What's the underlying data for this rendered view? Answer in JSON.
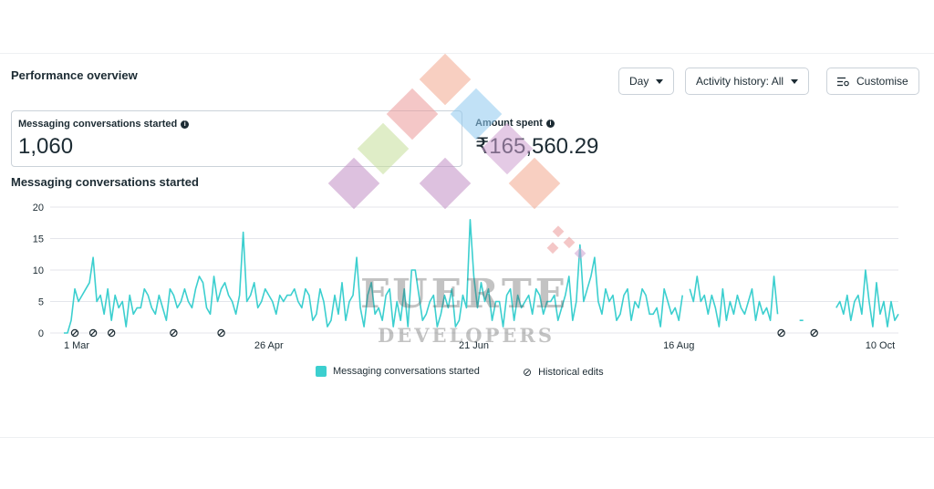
{
  "panel": {
    "title": "Performance overview",
    "buttons": {
      "day": "Day",
      "activity": "Activity history: All",
      "customise": "Customise"
    }
  },
  "metrics": [
    {
      "label": "Messaging conversations started",
      "value": "1,060"
    },
    {
      "label": "Amount spent",
      "value": "₹165,560.29"
    }
  ],
  "watermark": {
    "line1": "FUERTE",
    "line2": "DEVELOPERS"
  },
  "colors": {
    "line": "#3ccfcf",
    "grid": "#e4e6eb",
    "text": "#1c2b33"
  },
  "chart_data": {
    "type": "line",
    "title": "Messaging conversations started",
    "ylim": [
      0,
      20
    ],
    "yticks": [
      0,
      5,
      10,
      15,
      20
    ],
    "xtick_labels": [
      "1 Mar",
      "26 Apr",
      "21 Jun",
      "16 Aug",
      "10 Oct"
    ],
    "xtick_index": [
      0,
      56,
      112,
      168,
      223
    ],
    "series": [
      {
        "name": "Messaging conversations started",
        "color": "#3ccfcf",
        "values": [
          0,
          0,
          2,
          7,
          5,
          6,
          7,
          8,
          12,
          5,
          6,
          3,
          7,
          2,
          6,
          4,
          5,
          1,
          6,
          3,
          4,
          4,
          7,
          6,
          4,
          3,
          6,
          4,
          2,
          7,
          6,
          4,
          5,
          7,
          5,
          4,
          7,
          9,
          8,
          4,
          3,
          9,
          5,
          7,
          8,
          6,
          5,
          3,
          6,
          16,
          5,
          6,
          8,
          4,
          5,
          7,
          6,
          5,
          3,
          6,
          5,
          6,
          6,
          7,
          5,
          4,
          7,
          6,
          2,
          3,
          7,
          5,
          1,
          2,
          6,
          3,
          8,
          2,
          5,
          6,
          12,
          4,
          1,
          6,
          8,
          3,
          4,
          2,
          6,
          7,
          1,
          5,
          2,
          7,
          1,
          10,
          10,
          6,
          2,
          3,
          5,
          6,
          1,
          3,
          6,
          4,
          7,
          1,
          2,
          6,
          4,
          18,
          9,
          4,
          8,
          5,
          7,
          2,
          5,
          5,
          1,
          6,
          7,
          2,
          6,
          4,
          5,
          6,
          3,
          7,
          6,
          3,
          5,
          5,
          6,
          2,
          4,
          6,
          9,
          2,
          5,
          14,
          5,
          7,
          9,
          12,
          5,
          3,
          7,
          5,
          6,
          2,
          3,
          6,
          7,
          2,
          5,
          4,
          7,
          6,
          3,
          3,
          4,
          1,
          7,
          5,
          3,
          4,
          2,
          6,
          null,
          7,
          5,
          9,
          5,
          6,
          3,
          6,
          4,
          1,
          7,
          2,
          5,
          3,
          6,
          4,
          3,
          5,
          7,
          2,
          5,
          3,
          4,
          2,
          9,
          3,
          null,
          null,
          null,
          null,
          null,
          2,
          2,
          null,
          null,
          null,
          null,
          null,
          null,
          null,
          null,
          4,
          5,
          3,
          6,
          2,
          5,
          6,
          3,
          10,
          5,
          1,
          8,
          3,
          5,
          1,
          5,
          2,
          3
        ]
      }
    ],
    "historical_edit_index": [
      3,
      8,
      13,
      30,
      43,
      196,
      205
    ],
    "legend": [
      "Messaging conversations started",
      "Historical edits"
    ]
  }
}
